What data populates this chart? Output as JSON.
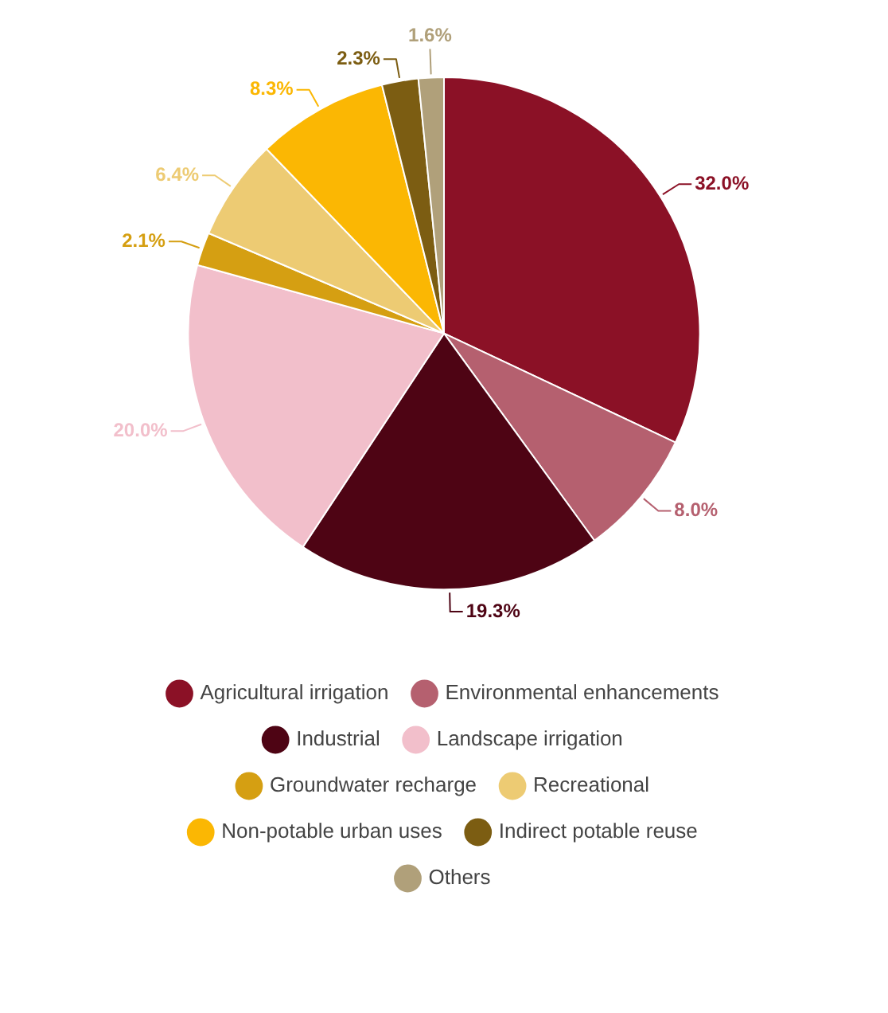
{
  "chart_data": {
    "type": "pie",
    "categories": [
      "Agricultural irrigation",
      "Environmental enhancements",
      "Industrial",
      "Landscape irrigation",
      "Groundwater recharge",
      "Recreational",
      "Non-potable urban uses",
      "Indirect potable reuse",
      "Others"
    ],
    "values": [
      32.0,
      8.0,
      19.3,
      20.0,
      2.1,
      6.4,
      8.3,
      2.3,
      1.6
    ],
    "colors": [
      "#8b1126",
      "#b5606f",
      "#4e0414",
      "#f2bfcb",
      "#d59f12",
      "#edcb73",
      "#fbb703",
      "#7c5d12",
      "#b0a07a"
    ],
    "value_labels": [
      "32.0%",
      "8.0%",
      "19.3%",
      "20.0%",
      "2.1%",
      "6.4%",
      "8.3%",
      "2.3%",
      "1.6%"
    ],
    "legend": "bottom"
  }
}
